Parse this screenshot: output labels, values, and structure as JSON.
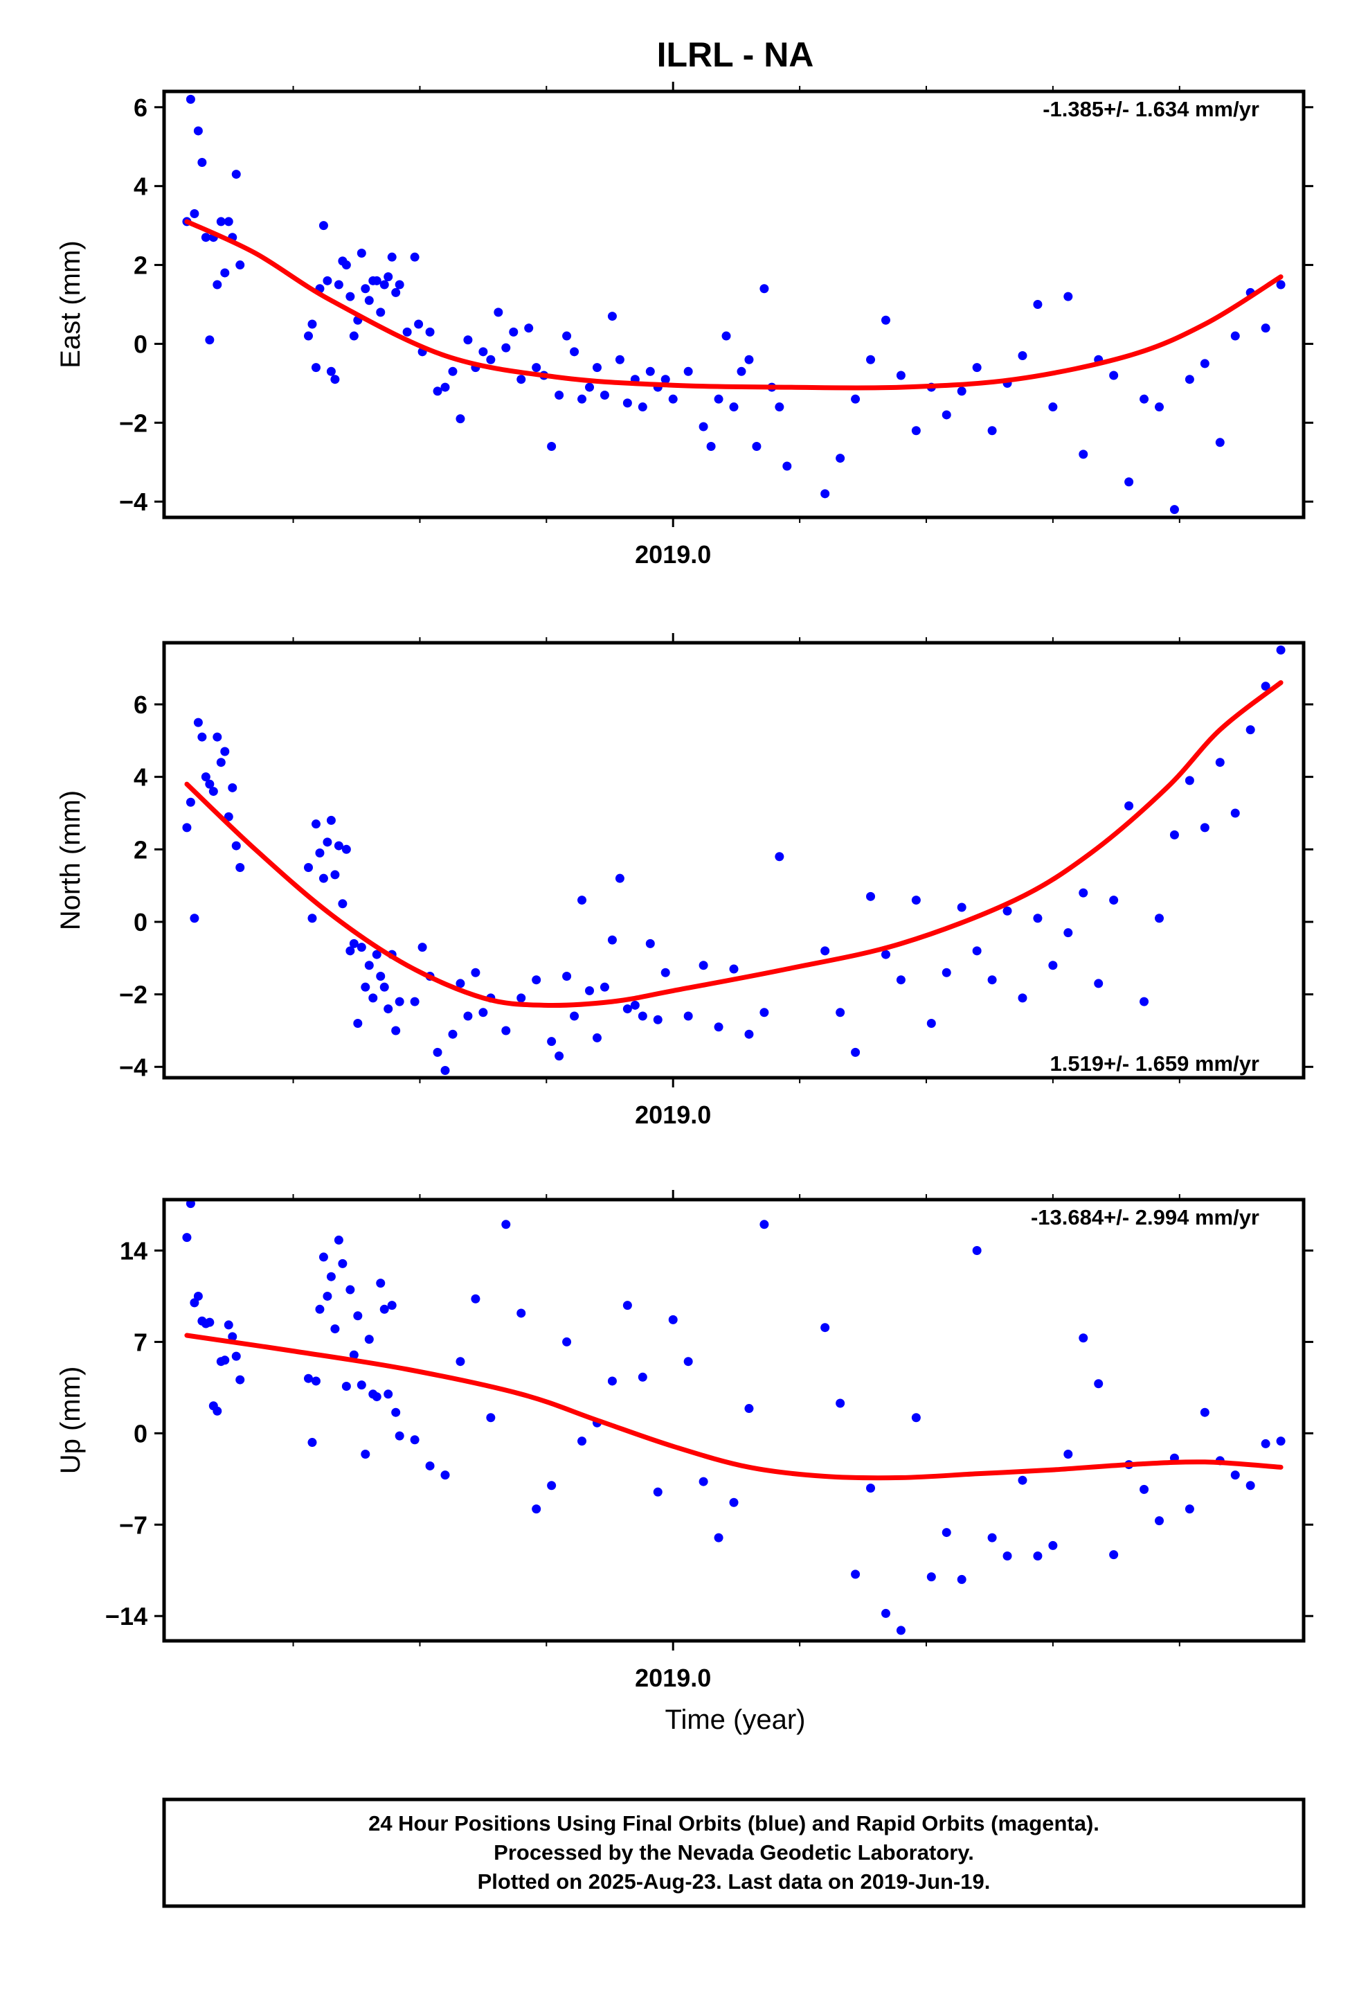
{
  "title": "ILRL - NA",
  "x_axis_label": "Time (year)",
  "footer_lines": [
    "24 Hour Positions Using Final Orbits (blue) and Rapid Orbits (magenta).",
    "Processed by the Nevada Geodetic Laboratory.",
    "Plotted on 2025-Aug-23. Last data on 2019-Jun-19."
  ],
  "colors": {
    "final_orbits": "#0000ff",
    "rapid_orbits": "#ff00ff",
    "fit": "#ff0000",
    "frame": "#000000"
  },
  "chart_data": [
    {
      "type": "scatter",
      "component": "East",
      "ylabel": "East (mm)",
      "rate_label": "-1.385+/- 1.634 mm/yr",
      "xlim": [
        2018.33,
        2019.83
      ],
      "ylim": [
        -4.4,
        6.4
      ],
      "xticks": [
        2019.0
      ],
      "xtick_labels": [
        "2019.0"
      ],
      "yticks": [
        -4,
        -2,
        0,
        2,
        4,
        6
      ],
      "ytick_labels": [
        "−4",
        "−2",
        "0",
        "2",
        "4",
        "6"
      ],
      "fit_curve": {
        "x": [
          2018.36,
          2018.45,
          2018.55,
          2018.7,
          2018.85,
          2019.0,
          2019.15,
          2019.3,
          2019.45,
          2019.6,
          2019.7,
          2019.8
        ],
        "y": [
          3.1,
          2.3,
          1.1,
          -0.3,
          -0.85,
          -1.05,
          -1.1,
          -1.1,
          -0.9,
          -0.3,
          0.5,
          1.7
        ]
      },
      "series": [
        {
          "x": [
            2018.36,
            2018.365,
            2018.37,
            2018.375,
            2018.38,
            2018.385,
            2018.39,
            2018.395,
            2018.4,
            2018.405,
            2018.41,
            2018.415,
            2018.42,
            2018.425,
            2018.43,
            2018.52,
            2018.525,
            2018.53,
            2018.535,
            2018.54,
            2018.545,
            2018.55,
            2018.555,
            2018.56,
            2018.565,
            2018.57,
            2018.575,
            2018.58,
            2018.585,
            2018.59,
            2018.595,
            2018.6,
            2018.605,
            2018.61,
            2018.615,
            2018.62,
            2018.625,
            2018.63,
            2018.635,
            2018.64,
            2018.65,
            2018.66,
            2018.665,
            2018.67,
            2018.68,
            2018.69,
            2018.7,
            2018.71,
            2018.72,
            2018.73,
            2018.74,
            2018.75,
            2018.76,
            2018.77,
            2018.78,
            2018.79,
            2018.8,
            2018.81,
            2018.82,
            2018.83,
            2018.84,
            2018.85,
            2018.86,
            2018.87,
            2018.88,
            2018.89,
            2018.9,
            2018.91,
            2018.92,
            2018.93,
            2018.94,
            2018.95,
            2018.96,
            2018.97,
            2018.98,
            2018.99,
            2019.0,
            2019.02,
            2019.04,
            2019.05,
            2019.06,
            2019.07,
            2019.08,
            2019.09,
            2019.1,
            2019.11,
            2019.12,
            2019.13,
            2019.14,
            2019.15,
            2019.2,
            2019.22,
            2019.24,
            2019.26,
            2019.28,
            2019.3,
            2019.32,
            2019.34,
            2019.36,
            2019.38,
            2019.4,
            2019.42,
            2019.44,
            2019.46,
            2019.48,
            2019.5,
            2019.52,
            2019.54,
            2019.56,
            2019.58,
            2019.6,
            2019.62,
            2019.64,
            2019.66,
            2019.68,
            2019.7,
            2019.72,
            2019.74,
            2019.76,
            2019.78,
            2019.8
          ],
          "y": [
            3.1,
            6.2,
            3.3,
            5.4,
            4.6,
            2.7,
            0.1,
            2.7,
            1.5,
            3.1,
            1.8,
            3.1,
            2.7,
            4.3,
            2.0,
            0.2,
            0.5,
            -0.6,
            1.4,
            3.0,
            1.6,
            -0.7,
            -0.9,
            1.5,
            2.1,
            2.0,
            1.2,
            0.2,
            0.6,
            2.3,
            1.4,
            1.1,
            1.6,
            1.6,
            0.8,
            1.5,
            1.7,
            2.2,
            1.3,
            1.5,
            0.3,
            2.2,
            0.5,
            -0.2,
            0.3,
            -1.2,
            -1.1,
            -0.7,
            -1.9,
            0.1,
            -0.6,
            -0.2,
            -0.4,
            0.8,
            -0.1,
            0.3,
            -0.9,
            0.4,
            -0.6,
            -0.8,
            -2.6,
            -1.3,
            0.2,
            -0.2,
            -1.4,
            -1.1,
            -0.6,
            -1.3,
            0.7,
            -0.4,
            -1.5,
            -0.9,
            -1.6,
            -0.7,
            -1.1,
            -0.9,
            -1.4,
            -0.7,
            -2.1,
            -2.6,
            -1.4,
            0.2,
            -1.6,
            -0.7,
            -0.4,
            -2.6,
            1.4,
            -1.1,
            -1.6,
            -3.1,
            -3.8,
            -2.9,
            -1.4,
            -0.4,
            0.6,
            -0.8,
            -2.2,
            -1.1,
            -1.8,
            -1.2,
            -0.6,
            -2.2,
            -1.0,
            -0.3,
            1.0,
            -1.6,
            1.2,
            -2.8,
            -0.4,
            -0.8,
            -3.5,
            -1.4,
            -1.6,
            -4.2,
            -0.9,
            -0.5,
            -2.5,
            0.2,
            1.3,
            0.4,
            1.5
          ],
          "name": ""
        }
      ]
    },
    {
      "type": "scatter",
      "component": "North",
      "ylabel": "North (mm)",
      "rate_label": "1.519+/- 1.659 mm/yr",
      "xlim": [
        2018.33,
        2019.83
      ],
      "ylim": [
        -4.3,
        7.7
      ],
      "xticks": [
        2019.0
      ],
      "xtick_labels": [
        "2019.0"
      ],
      "yticks": [
        -4,
        -2,
        0,
        2,
        4,
        6
      ],
      "ytick_labels": [
        "−4",
        "−2",
        "0",
        "2",
        "4",
        "6"
      ],
      "fit_curve": {
        "x": [
          2018.36,
          2018.45,
          2018.55,
          2018.65,
          2018.75,
          2018.83,
          2018.92,
          2019.0,
          2019.15,
          2019.3,
          2019.45,
          2019.55,
          2019.65,
          2019.72,
          2019.8
        ],
        "y": [
          3.8,
          2.0,
          0.2,
          -1.2,
          -2.1,
          -2.3,
          -2.2,
          -1.9,
          -1.3,
          -0.6,
          0.6,
          1.9,
          3.7,
          5.3,
          6.6
        ]
      },
      "series": [
        {
          "x": [
            2018.36,
            2018.365,
            2018.37,
            2018.375,
            2018.38,
            2018.385,
            2018.39,
            2018.395,
            2018.4,
            2018.405,
            2018.41,
            2018.415,
            2018.42,
            2018.425,
            2018.43,
            2018.52,
            2018.525,
            2018.53,
            2018.535,
            2018.54,
            2018.545,
            2018.55,
            2018.555,
            2018.56,
            2018.565,
            2018.57,
            2018.575,
            2018.58,
            2018.585,
            2018.59,
            2018.595,
            2018.6,
            2018.605,
            2018.61,
            2018.615,
            2018.62,
            2018.625,
            2018.63,
            2018.635,
            2018.64,
            2018.66,
            2018.67,
            2018.68,
            2018.69,
            2018.7,
            2018.71,
            2018.72,
            2018.73,
            2018.74,
            2018.75,
            2018.76,
            2018.78,
            2018.8,
            2018.82,
            2018.84,
            2018.85,
            2018.86,
            2018.87,
            2018.88,
            2018.89,
            2018.9,
            2018.91,
            2018.92,
            2018.93,
            2018.94,
            2018.95,
            2018.96,
            2018.97,
            2018.98,
            2018.99,
            2019.02,
            2019.04,
            2019.06,
            2019.08,
            2019.1,
            2019.12,
            2019.14,
            2019.2,
            2019.22,
            2019.24,
            2019.26,
            2019.28,
            2019.3,
            2019.32,
            2019.34,
            2019.36,
            2019.38,
            2019.4,
            2019.42,
            2019.44,
            2019.46,
            2019.48,
            2019.5,
            2019.52,
            2019.54,
            2019.56,
            2019.58,
            2019.6,
            2019.62,
            2019.64,
            2019.66,
            2019.68,
            2019.7,
            2019.72,
            2019.74,
            2019.76,
            2019.78,
            2019.8
          ],
          "y": [
            2.6,
            3.3,
            0.1,
            5.5,
            5.1,
            4.0,
            3.8,
            3.6,
            5.1,
            4.4,
            4.7,
            2.9,
            3.7,
            2.1,
            1.5,
            1.5,
            0.1,
            2.7,
            1.9,
            1.2,
            2.2,
            2.8,
            1.3,
            2.1,
            0.5,
            2.0,
            -0.8,
            -0.6,
            -2.8,
            -0.7,
            -1.8,
            -1.2,
            -2.1,
            -0.9,
            -1.5,
            -1.8,
            -2.4,
            -0.9,
            -3.0,
            -2.2,
            -2.2,
            -0.7,
            -1.5,
            -3.6,
            -4.1,
            -3.1,
            -1.7,
            -2.6,
            -1.4,
            -2.5,
            -2.1,
            -3.0,
            -2.1,
            -1.6,
            -3.3,
            -3.7,
            -1.5,
            -2.6,
            0.6,
            -1.9,
            -3.2,
            -1.8,
            -0.5,
            1.2,
            -2.4,
            -2.3,
            -2.6,
            -0.6,
            -2.7,
            -1.4,
            -2.6,
            -1.2,
            -2.9,
            -1.3,
            -3.1,
            -2.5,
            1.8,
            -0.8,
            -2.5,
            -3.6,
            0.7,
            -0.9,
            -1.6,
            0.6,
            -2.8,
            -1.4,
            0.4,
            -0.8,
            -1.6,
            0.3,
            -2.1,
            0.1,
            -1.2,
            -0.3,
            0.8,
            -1.7,
            0.6,
            3.2,
            -2.2,
            0.1,
            2.4,
            3.9,
            2.6,
            4.4,
            3.0,
            5.3,
            6.5,
            7.5
          ],
          "name": ""
        }
      ]
    },
    {
      "type": "scatter",
      "component": "Up",
      "ylabel": "Up (mm)",
      "rate_label": "-13.684+/- 2.994 mm/yr",
      "xlim": [
        2018.33,
        2019.83
      ],
      "ylim": [
        -15.9,
        17.9
      ],
      "xticks": [
        2019.0
      ],
      "xtick_labels": [
        "2019.0"
      ],
      "yticks": [
        -14,
        -7,
        0,
        7,
        14
      ],
      "ytick_labels": [
        "−14",
        "−7",
        "0",
        "7",
        "14"
      ],
      "fit_curve": {
        "x": [
          2018.36,
          2018.5,
          2018.65,
          2018.8,
          2018.9,
          2019.0,
          2019.1,
          2019.2,
          2019.3,
          2019.4,
          2019.5,
          2019.6,
          2019.7,
          2019.8
        ],
        "y": [
          7.5,
          6.3,
          4.9,
          3.0,
          1.0,
          -1.0,
          -2.6,
          -3.3,
          -3.4,
          -3.1,
          -2.8,
          -2.4,
          -2.2,
          -2.6
        ]
      },
      "series": [
        {
          "x": [
            2018.36,
            2018.365,
            2018.37,
            2018.375,
            2018.38,
            2018.385,
            2018.39,
            2018.395,
            2018.4,
            2018.405,
            2018.41,
            2018.415,
            2018.42,
            2018.425,
            2018.43,
            2018.52,
            2018.525,
            2018.53,
            2018.535,
            2018.54,
            2018.545,
            2018.55,
            2018.555,
            2018.56,
            2018.565,
            2018.57,
            2018.575,
            2018.58,
            2018.585,
            2018.59,
            2018.595,
            2018.6,
            2018.605,
            2018.61,
            2018.615,
            2018.62,
            2018.625,
            2018.63,
            2018.635,
            2018.64,
            2018.66,
            2018.68,
            2018.7,
            2018.72,
            2018.74,
            2018.76,
            2018.78,
            2018.8,
            2018.82,
            2018.84,
            2018.86,
            2018.88,
            2018.9,
            2018.92,
            2018.94,
            2018.96,
            2018.98,
            2019.0,
            2019.02,
            2019.04,
            2019.06,
            2019.08,
            2019.1,
            2019.12,
            2019.2,
            2019.22,
            2019.24,
            2019.26,
            2019.28,
            2019.3,
            2019.32,
            2019.34,
            2019.36,
            2019.38,
            2019.4,
            2019.42,
            2019.44,
            2019.46,
            2019.48,
            2019.5,
            2019.52,
            2019.54,
            2019.56,
            2019.58,
            2019.6,
            2019.62,
            2019.64,
            2019.66,
            2019.68,
            2019.7,
            2019.72,
            2019.74,
            2019.76,
            2019.78,
            2019.8
          ],
          "y": [
            15.0,
            17.6,
            10.0,
            10.5,
            8.6,
            8.4,
            8.5,
            2.1,
            1.7,
            5.5,
            5.6,
            8.3,
            7.4,
            5.9,
            4.1,
            4.2,
            -0.7,
            4.0,
            9.5,
            13.5,
            10.5,
            12.0,
            8.0,
            14.8,
            13.0,
            3.6,
            11.0,
            6.0,
            9.0,
            3.7,
            -1.6,
            7.2,
            3.0,
            2.8,
            11.5,
            9.5,
            3.0,
            9.8,
            1.6,
            -0.2,
            -0.5,
            -2.5,
            -3.2,
            5.5,
            10.3,
            1.2,
            16.0,
            9.2,
            -5.8,
            -4.0,
            7.0,
            -0.6,
            0.8,
            4.0,
            9.8,
            4.3,
            -4.5,
            8.7,
            5.5,
            -3.7,
            -8.0,
            -5.3,
            1.9,
            16.0,
            8.1,
            2.3,
            -10.8,
            -4.2,
            -13.8,
            -15.1,
            1.2,
            -11.0,
            -7.6,
            -11.2,
            14.0,
            -8.0,
            -9.4,
            -3.6,
            -9.4,
            -8.6,
            -1.6,
            7.3,
            3.8,
            -9.3,
            -2.4,
            -4.3,
            -6.7,
            -1.9,
            -5.8,
            1.6,
            -2.1,
            -3.2,
            -4.0,
            -0.8,
            -0.6
          ]
        }
      ]
    }
  ]
}
